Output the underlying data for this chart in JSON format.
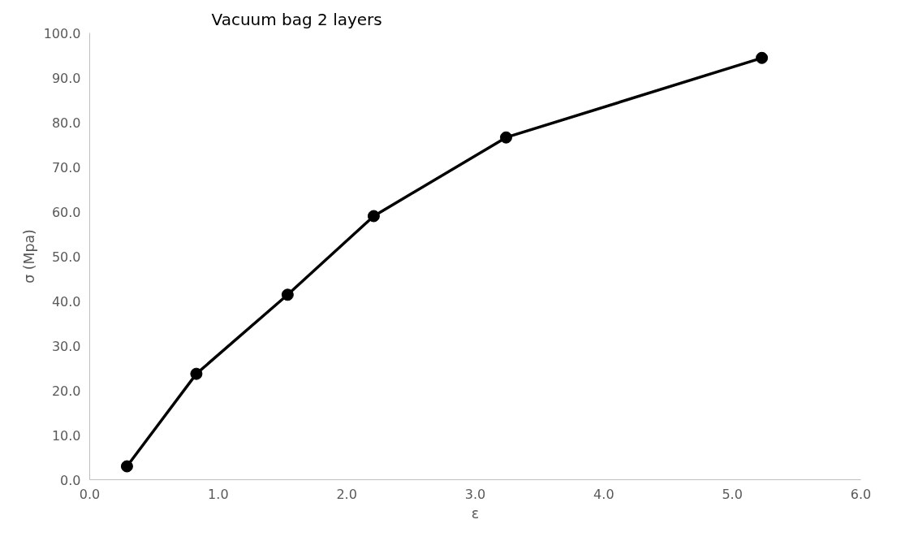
{
  "chart_data": {
    "type": "line",
    "title": "Vacuum bag 2 layers",
    "xlabel": "ε",
    "ylabel": "σ (Mpa)",
    "x": [
      0.29,
      0.83,
      1.54,
      2.21,
      3.24,
      5.23
    ],
    "series": [
      {
        "color": "#000000",
        "values": [
          3.0,
          23.7,
          41.4,
          59.0,
          76.6,
          94.4
        ]
      }
    ],
    "xlim": [
      0,
      6
    ],
    "ylim": [
      0,
      100
    ],
    "xticks": [
      {
        "value": 0,
        "label": "0.0"
      },
      {
        "value": 1,
        "label": "1.0"
      },
      {
        "value": 2,
        "label": "2.0"
      },
      {
        "value": 3,
        "label": "3.0"
      },
      {
        "value": 4,
        "label": "4.0"
      },
      {
        "value": 5,
        "label": "5.0"
      },
      {
        "value": 6,
        "label": "6.0"
      }
    ],
    "yticks": [
      {
        "value": 0,
        "label": "0.0"
      },
      {
        "value": 10,
        "label": "10.0"
      },
      {
        "value": 20,
        "label": "20.0"
      },
      {
        "value": 30,
        "label": "30.0"
      },
      {
        "value": 40,
        "label": "40.0"
      },
      {
        "value": 50,
        "label": "50.0"
      },
      {
        "value": 60,
        "label": "60.0"
      },
      {
        "value": 70,
        "label": "70.0"
      },
      {
        "value": 80,
        "label": "80.0"
      },
      {
        "value": 90,
        "label": "90.0"
      },
      {
        "value": 100,
        "label": "100.0"
      }
    ],
    "grid": false,
    "marker": "circle",
    "line_style": "solid"
  }
}
